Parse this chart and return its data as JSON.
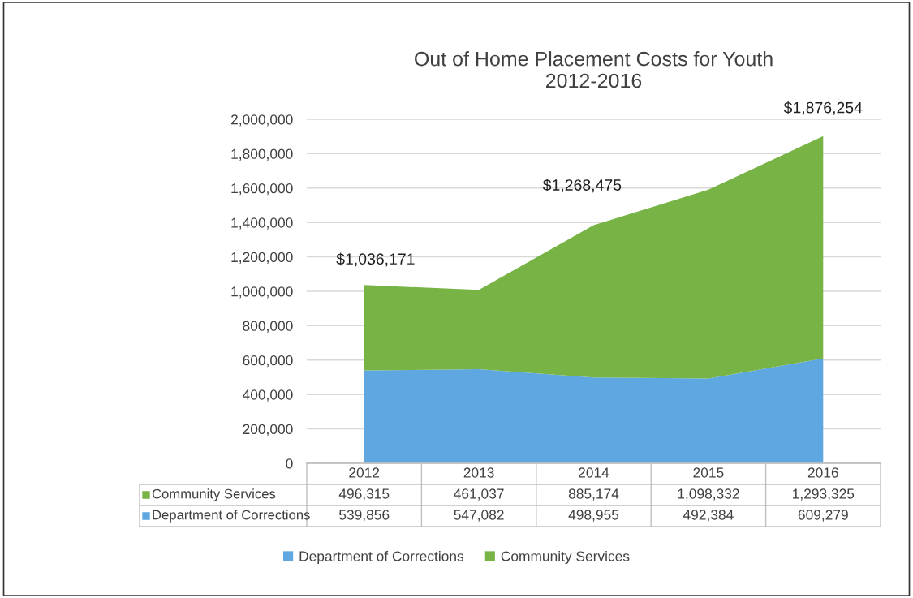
{
  "chart_data": {
    "type": "area",
    "stacked": true,
    "title": "Out of Home Placement Costs for Youth\n2012-2016",
    "categories": [
      "2012",
      "2013",
      "2014",
      "2015",
      "2016"
    ],
    "series": [
      {
        "name": "Department of Corrections",
        "color": "#5ea7e0",
        "values": [
          539856,
          547082,
          498955,
          492384,
          609279
        ],
        "value_labels": [
          "539,856",
          "547,082",
          "498,955",
          "492,384",
          "609,279"
        ]
      },
      {
        "name": "Community Services",
        "color": "#78b445",
        "values": [
          496315,
          461037,
          885174,
          1098332,
          1293325
        ],
        "value_labels": [
          "496,315",
          "461,037",
          "885,174",
          "1,098,332",
          "1,293,325"
        ]
      }
    ],
    "ylim": [
      0,
      2000000
    ],
    "yticks": [
      {
        "value": 0,
        "label": "0"
      },
      {
        "value": 200000,
        "label": "200,000"
      },
      {
        "value": 400000,
        "label": "400,000"
      },
      {
        "value": 600000,
        "label": "600,000"
      },
      {
        "value": 800000,
        "label": "800,000"
      },
      {
        "value": 1000000,
        "label": "1,000,000"
      },
      {
        "value": 1200000,
        "label": "1,200,000"
      },
      {
        "value": 1400000,
        "label": "1,400,000"
      },
      {
        "value": 1600000,
        "label": "1,600,000"
      },
      {
        "value": 1800000,
        "label": "1,800,000"
      },
      {
        "value": 2000000,
        "label": "2,000,000"
      }
    ],
    "annotations": [
      "$1,036,171",
      "$1,268,475",
      "$1,876,254"
    ],
    "grid": "y",
    "legend": "bottom"
  }
}
